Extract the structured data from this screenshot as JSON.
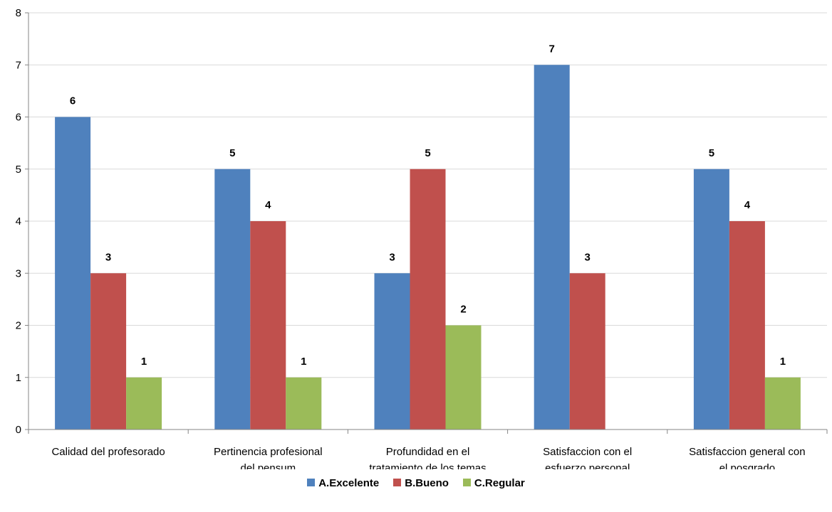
{
  "chart_data": {
    "type": "bar",
    "categories": [
      [
        "Calidad del profesorado"
      ],
      [
        "Pertinencia profesional",
        "del pensum"
      ],
      [
        "Profundidad en el",
        "tratamiento de los temas"
      ],
      [
        "Satisfaccion con el",
        "esfuerzo personal"
      ],
      [
        "Satisfaccion general con",
        "el posgrado"
      ]
    ],
    "series": [
      {
        "name": "A.Excelente",
        "color": "#4F81BD",
        "values": [
          6,
          5,
          3,
          7,
          5
        ]
      },
      {
        "name": "B.Bueno",
        "color": "#C0504D",
        "values": [
          3,
          4,
          5,
          3,
          4
        ]
      },
      {
        "name": "C.Regular",
        "color": "#9BBB59",
        "values": [
          1,
          1,
          2,
          null,
          1
        ]
      }
    ],
    "ylim": [
      0,
      8
    ],
    "yticks": [
      0,
      1,
      2,
      3,
      4,
      5,
      6,
      7,
      8
    ],
    "grid": true,
    "legend": "bottom"
  }
}
